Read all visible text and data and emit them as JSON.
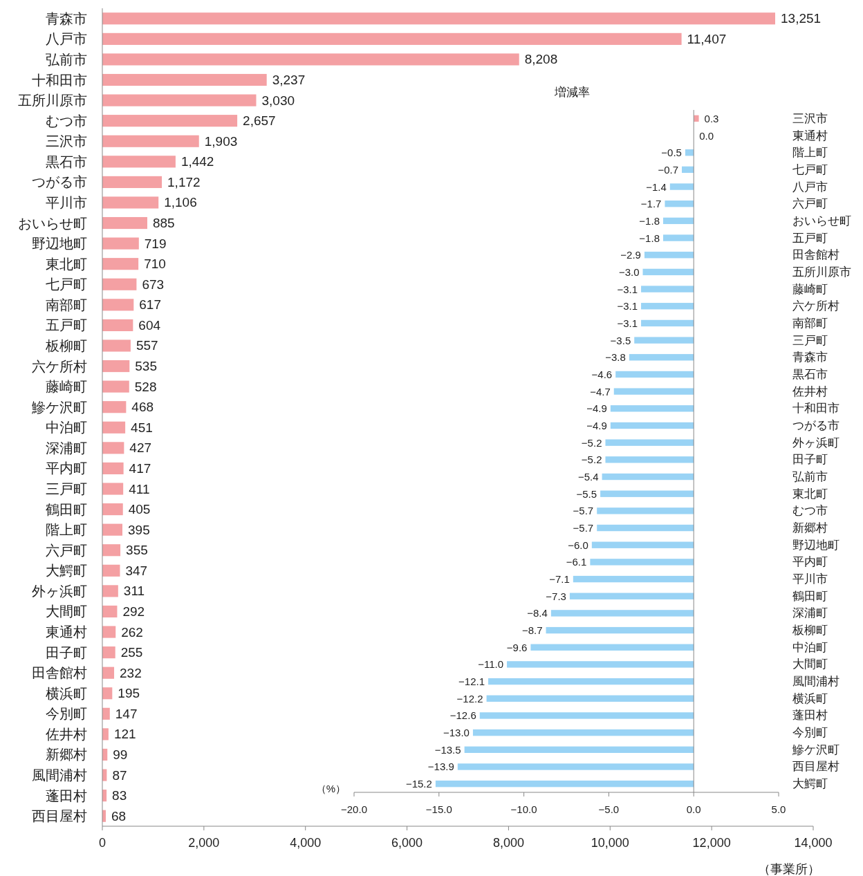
{
  "chart_data": [
    {
      "type": "bar",
      "orientation": "horizontal",
      "xlabel": "（事業所）",
      "color": "#f4a0a3",
      "categories": [
        "青森市",
        "八戸市",
        "弘前市",
        "十和田市",
        "五所川原市",
        "むつ市",
        "三沢市",
        "黒石市",
        "つがる市",
        "平川市",
        "おいらせ町",
        "野辺地町",
        "東北町",
        "七戸町",
        "南部町",
        "五戸町",
        "板柳町",
        "六ケ所村",
        "藤崎町",
        "鰺ケ沢町",
        "中泊町",
        "深浦町",
        "平内町",
        "三戸町",
        "鶴田町",
        "階上町",
        "六戸町",
        "大鰐町",
        "外ヶ浜町",
        "大間町",
        "東通村",
        "田子町",
        "田舎館村",
        "横浜町",
        "今別町",
        "佐井村",
        "新郷村",
        "風間浦村",
        "蓬田村",
        "西目屋村"
      ],
      "values": [
        13251,
        11407,
        8208,
        3237,
        3030,
        2657,
        1903,
        1442,
        1172,
        1106,
        885,
        719,
        710,
        673,
        617,
        604,
        557,
        535,
        528,
        468,
        451,
        427,
        417,
        411,
        405,
        395,
        355,
        347,
        311,
        292,
        262,
        255,
        232,
        195,
        147,
        121,
        99,
        87,
        83,
        68
      ],
      "value_labels": [
        "13,251",
        "11,407",
        "8,208",
        "3,237",
        "3,030",
        "2,657",
        "1,903",
        "1,442",
        "1,172",
        "1,106",
        "885",
        "719",
        "710",
        "673",
        "617",
        "604",
        "557",
        "535",
        "528",
        "468",
        "451",
        "427",
        "417",
        "411",
        "405",
        "395",
        "355",
        "347",
        "311",
        "292",
        "262",
        "255",
        "232",
        "195",
        "147",
        "121",
        "99",
        "87",
        "83",
        "68"
      ],
      "xlim": [
        0,
        14000
      ],
      "xticks": [
        0,
        {
          "value": 2000,
          "label": "2,000"
        },
        {
          "value": 4000,
          "label": "4,000"
        },
        {
          "value": 6000,
          "label": "6,000"
        },
        {
          "value": 8000,
          "label": "8,000"
        },
        {
          "value": 10000,
          "label": "10,000"
        },
        {
          "value": 12000,
          "label": "12,000"
        },
        {
          "value": 14000,
          "label": "14,000"
        }
      ]
    },
    {
      "type": "bar",
      "orientation": "horizontal",
      "title": "増減率",
      "xlabel": "（%）",
      "categories": [
        "三沢市",
        "東通村",
        "階上町",
        "七戸町",
        "八戸市",
        "六戸町",
        "おいらせ町",
        "五戸町",
        "田舎館村",
        "五所川原市",
        "藤崎町",
        "六ケ所村",
        "南部町",
        "三戸町",
        "青森市",
        "黒石市",
        "佐井村",
        "十和田市",
        "つがる市",
        "外ヶ浜町",
        "田子町",
        "弘前市",
        "東北町",
        "むつ市",
        "新郷村",
        "野辺地町",
        "平内町",
        "平川市",
        "鶴田町",
        "深浦町",
        "板柳町",
        "中泊町",
        "大間町",
        "風間浦村",
        "横浜町",
        "蓬田村",
        "今別町",
        "鰺ケ沢町",
        "西目屋村",
        "大鰐町"
      ],
      "values": [
        0.3,
        0.0,
        -0.5,
        -0.7,
        -1.4,
        -1.7,
        -1.8,
        -1.8,
        -2.9,
        -3.0,
        -3.1,
        -3.1,
        -3.1,
        -3.5,
        -3.8,
        -4.6,
        -4.7,
        -4.9,
        -4.9,
        -5.2,
        -5.2,
        -5.4,
        -5.5,
        -5.7,
        -5.7,
        -6.0,
        -6.1,
        -7.1,
        -7.3,
        -8.4,
        -8.7,
        -9.6,
        -11.0,
        -12.1,
        -12.2,
        -12.6,
        -13.0,
        -13.5,
        -13.9,
        -15.2
      ],
      "colors": [
        "#f4a0a3",
        "#99d3f5",
        "#99d3f5",
        "#99d3f5",
        "#99d3f5",
        "#99d3f5",
        "#99d3f5",
        "#99d3f5",
        "#99d3f5",
        "#99d3f5",
        "#99d3f5",
        "#99d3f5",
        "#99d3f5",
        "#99d3f5",
        "#99d3f5",
        "#99d3f5",
        "#99d3f5",
        "#99d3f5",
        "#99d3f5",
        "#99d3f5",
        "#99d3f5",
        "#99d3f5",
        "#99d3f5",
        "#99d3f5",
        "#99d3f5",
        "#99d3f5",
        "#99d3f5",
        "#99d3f5",
        "#99d3f5",
        "#99d3f5",
        "#99d3f5",
        "#99d3f5",
        "#99d3f5",
        "#99d3f5",
        "#99d3f5",
        "#99d3f5",
        "#99d3f5",
        "#99d3f5",
        "#99d3f5",
        "#99d3f5"
      ],
      "value_labels": [
        "0.3",
        "0.0",
        "−0.5",
        "−0.7",
        "−1.4",
        "−1.7",
        "−1.8",
        "−1.8",
        "−2.9",
        "−3.0",
        "−3.1",
        "−3.1",
        "−3.1",
        "−3.5",
        "−3.8",
        "−4.6",
        "−4.7",
        "−4.9",
        "−4.9",
        "−5.2",
        "−5.2",
        "−5.4",
        "−5.5",
        "−5.7",
        "−5.7",
        "−6.0",
        "−6.1",
        "−7.1",
        "−7.3",
        "−8.4",
        "−8.7",
        "−9.6",
        "−11.0",
        "−12.1",
        "−12.2",
        "−12.6",
        "−13.0",
        "−13.5",
        "−13.9",
        "−15.2"
      ],
      "xlim": [
        -20,
        5
      ],
      "xticks": [
        {
          "value": -20,
          "label": "−20.0"
        },
        {
          "value": -15,
          "label": "−15.0"
        },
        {
          "value": -10,
          "label": "−10.0"
        },
        {
          "value": -5,
          "label": "−5.0"
        },
        {
          "value": 0,
          "label": "0.0"
        },
        {
          "value": 5,
          "label": "5.0"
        }
      ]
    }
  ]
}
